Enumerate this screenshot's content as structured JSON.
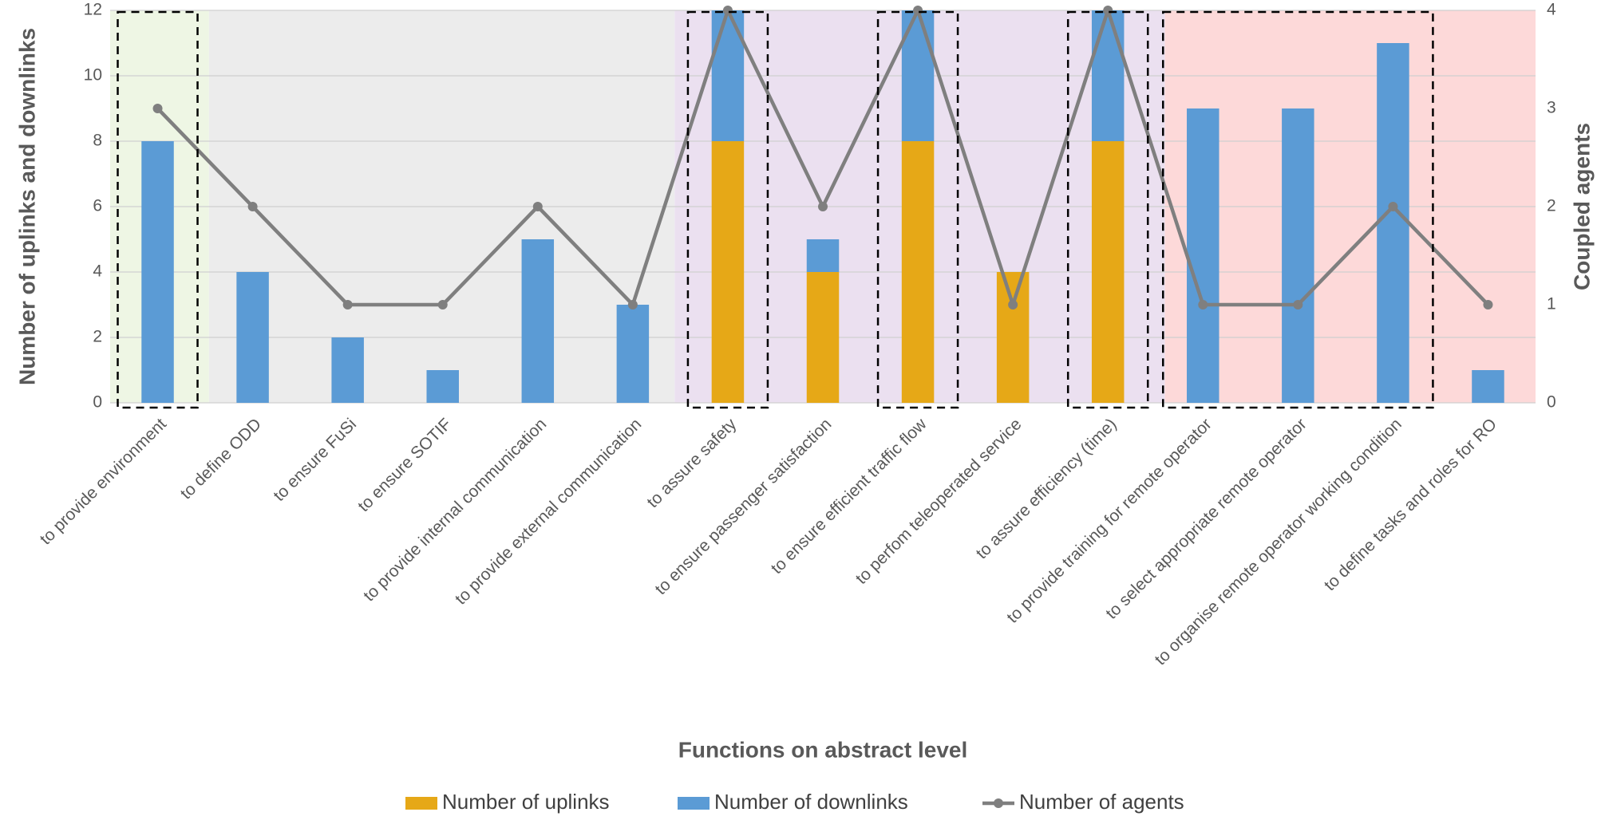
{
  "chart_data": {
    "type": "bar",
    "stacked": true,
    "xlabel": "Functions on abstract level",
    "ylabel": "Number of uplinks and downlinks",
    "y2label": "Coupled agents",
    "categories": [
      "to provide environment",
      "to define ODD",
      "to ensure FuSi",
      "to ensure SOTIF",
      "to provide internal communication",
      "to provide external communication",
      "to assure safety",
      "to ensure passenger satisfaction",
      "to ensure efficient traffic flow",
      "to perfom teleoperated service",
      "to assure efficiency (time)",
      "to provide training for remote operator",
      "to select appropriate remote operator",
      "to organise remote operator working condition",
      "to define tasks and roles for RO"
    ],
    "series": [
      {
        "name": "Number of uplinks",
        "type": "bar",
        "color": "#e6a817",
        "values": [
          0,
          0,
          0,
          0,
          0,
          0,
          8,
          4,
          8,
          4,
          8,
          0,
          0,
          0,
          0
        ]
      },
      {
        "name": "Number of downlinks",
        "type": "bar",
        "color": "#5b9bd5",
        "values": [
          8,
          4,
          2,
          1,
          5,
          3,
          4,
          1,
          4,
          0,
          4,
          9,
          9,
          11,
          1
        ]
      },
      {
        "name": "Number of agents",
        "type": "line",
        "axis": "y2",
        "color": "#7f7f7f",
        "values": [
          3,
          2,
          1,
          1,
          2,
          1,
          4,
          2,
          4,
          1,
          4,
          1,
          1,
          2,
          1
        ]
      }
    ],
    "ylim": [
      0,
      12
    ],
    "yticks": [
      0,
      2,
      4,
      6,
      8,
      10,
      12
    ],
    "y2lim": [
      0,
      4
    ],
    "y2ticks": [
      0,
      1,
      2,
      3,
      4
    ],
    "grid": true,
    "legend": "bottom"
  }
}
